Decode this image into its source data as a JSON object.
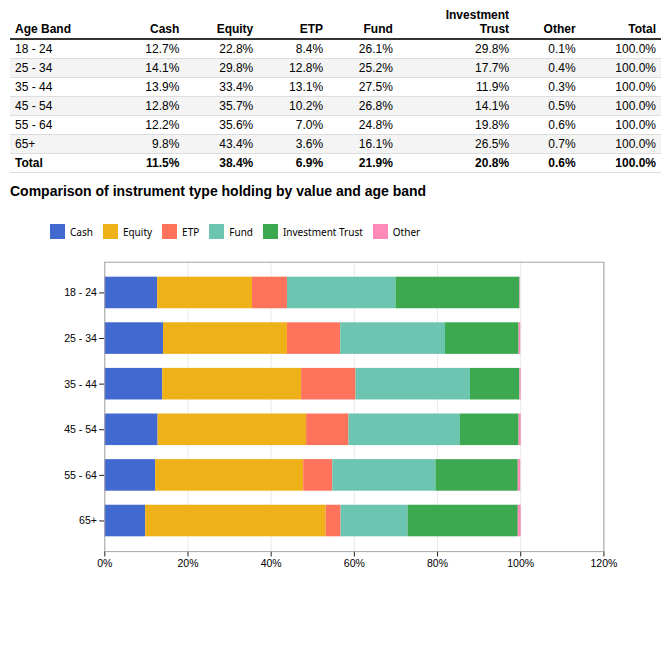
{
  "chart_data": [
    {
      "type": "table",
      "columns": [
        "Age Band",
        "Cash",
        "Equity",
        "ETP",
        "Fund",
        "Investment\nTrust",
        "Other",
        "Total"
      ],
      "align": [
        "left",
        "right",
        "right",
        "right",
        "right",
        "right",
        "right",
        "right"
      ],
      "rows": [
        [
          "18 - 24",
          "12.7%",
          "22.8%",
          "8.4%",
          "26.1%",
          "29.8%",
          "0.1%",
          "100.0%"
        ],
        [
          "25 - 34",
          "14.1%",
          "29.8%",
          "12.8%",
          "25.2%",
          "17.7%",
          "0.4%",
          "100.0%"
        ],
        [
          "35 - 44",
          "13.9%",
          "33.4%",
          "13.1%",
          "27.5%",
          "11.9%",
          "0.3%",
          "100.0%"
        ],
        [
          "45 - 54",
          "12.8%",
          "35.7%",
          "10.2%",
          "26.8%",
          "14.1%",
          "0.5%",
          "100.0%"
        ],
        [
          "55 - 64",
          "12.2%",
          "35.6%",
          "7.0%",
          "24.8%",
          "19.8%",
          "0.6%",
          "100.0%"
        ],
        [
          "65+",
          "9.8%",
          "43.4%",
          "3.6%",
          "16.1%",
          "26.5%",
          "0.7%",
          "100.0%"
        ],
        [
          "Total",
          "11.5%",
          "38.4%",
          "6.9%",
          "21.9%",
          "20.8%",
          "0.6%",
          "100.0%"
        ]
      ]
    },
    {
      "type": "bar",
      "title": "Comparison of instrument type holding by value and age band",
      "orientation": "horizontal",
      "stacked": true,
      "categories": [
        "18 - 24",
        "25 - 34",
        "35 - 44",
        "45 - 54",
        "55 - 64",
        "65+"
      ],
      "series": [
        {
          "name": "Cash",
          "values": [
            12.7,
            14.1,
            13.9,
            12.8,
            12.2,
            9.8
          ]
        },
        {
          "name": "Equity",
          "values": [
            22.8,
            29.8,
            33.4,
            35.7,
            35.6,
            43.4
          ]
        },
        {
          "name": "ETP",
          "values": [
            8.4,
            12.8,
            13.1,
            10.2,
            7.0,
            3.6
          ]
        },
        {
          "name": "Fund",
          "values": [
            26.1,
            25.2,
            27.5,
            26.8,
            24.8,
            16.1
          ]
        },
        {
          "name": "Investment Trust",
          "values": [
            29.8,
            17.7,
            11.9,
            14.1,
            19.8,
            26.5
          ]
        },
        {
          "name": "Other",
          "values": [
            0.1,
            0.4,
            0.3,
            0.5,
            0.6,
            0.7
          ]
        }
      ],
      "xlim": [
        0,
        120
      ],
      "xticks": [
        {
          "value": 0,
          "label": "0%"
        },
        {
          "value": 20,
          "label": "20%"
        },
        {
          "value": 40,
          "label": "40%"
        },
        {
          "value": 60,
          "label": "60%"
        },
        {
          "value": 80,
          "label": "80%"
        },
        {
          "value": 100,
          "label": "100%"
        },
        {
          "value": 120,
          "label": "120%"
        }
      ],
      "grid": true,
      "legend": "upper left"
    }
  ]
}
